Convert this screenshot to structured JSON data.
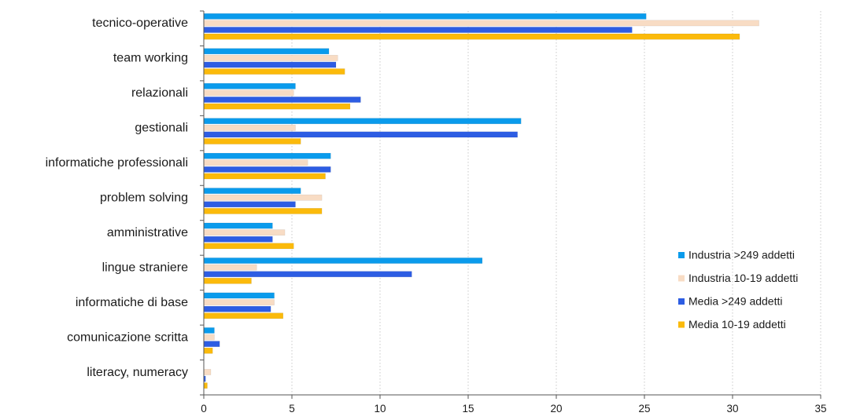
{
  "chart_data": {
    "type": "bar",
    "orientation": "horizontal",
    "title": "",
    "xlabel": "",
    "ylabel": "",
    "xlim": [
      0,
      35
    ],
    "x_ticks": [
      "0",
      "5",
      "10",
      "15",
      "20",
      "25",
      "30",
      "35"
    ],
    "grid": "vertical dotted",
    "legend_position": "right",
    "categories": [
      "tecnico-operative",
      "team working",
      "relazionali",
      "gestionali",
      "informatiche professionali",
      "problem solving",
      "amministrative",
      "lingue straniere",
      "informatiche di base",
      "comunicazione scritta",
      "literacy, numeracy"
    ],
    "series": [
      {
        "name": "Industria >249 addetti",
        "color": "#0a9bec",
        "values": [
          25.1,
          7.1,
          5.2,
          18.0,
          7.2,
          5.5,
          3.9,
          15.8,
          4.0,
          0.6,
          0.0
        ]
      },
      {
        "name": "Industria 10-19 addetti",
        "color": "#f8dcc4",
        "values": [
          31.5,
          7.6,
          5.1,
          5.2,
          5.9,
          6.7,
          4.6,
          3.0,
          4.0,
          0.6,
          0.4
        ]
      },
      {
        "name": "Media >249 addetti",
        "color": "#2d5de3",
        "values": [
          24.3,
          7.5,
          8.9,
          17.8,
          7.2,
          5.2,
          3.9,
          11.8,
          3.8,
          0.9,
          0.1
        ]
      },
      {
        "name": "Media 10-19 addetti",
        "color": "#fbba0b",
        "values": [
          30.4,
          8.0,
          8.3,
          5.5,
          6.9,
          6.7,
          5.1,
          2.7,
          4.5,
          0.5,
          0.2
        ]
      }
    ]
  }
}
